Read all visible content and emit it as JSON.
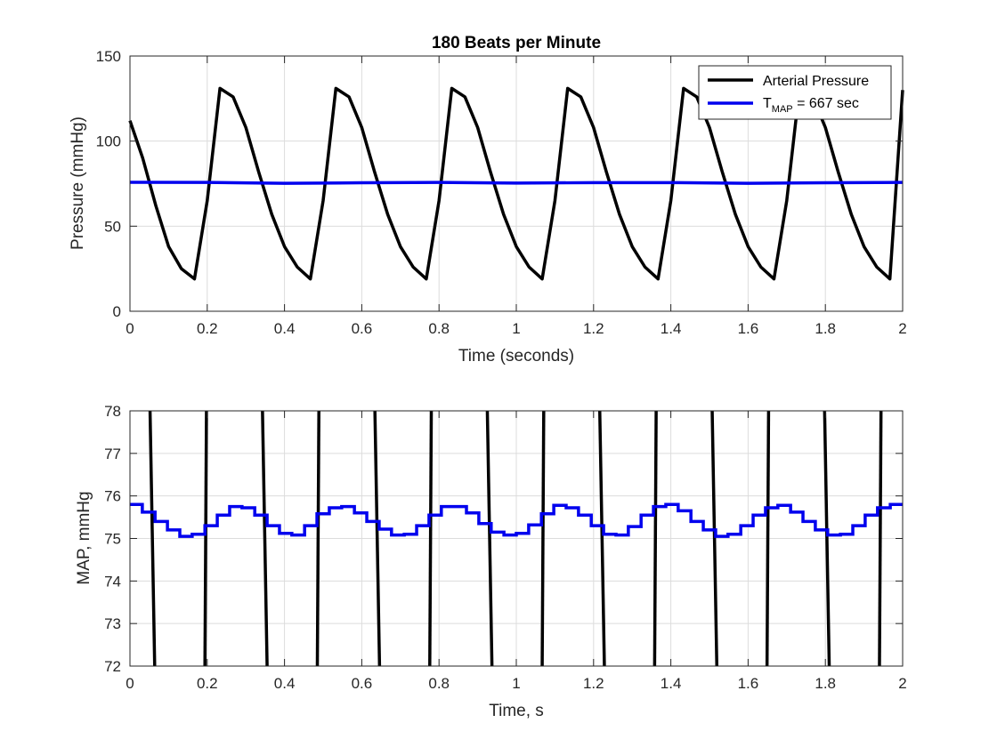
{
  "colors": {
    "pressure": "#000000",
    "map": "#0000ee",
    "grid": "#dcdcdc",
    "axis": "#262626"
  },
  "chart_data": [
    {
      "type": "line",
      "title": "180 Beats per Minute",
      "xlabel": "Time (seconds)",
      "ylabel": "Pressure (mmHg)",
      "xlim": [
        0,
        2
      ],
      "ylim": [
        0,
        150
      ],
      "xticks": [
        "0",
        "0.2",
        "0.4",
        "0.6",
        "0.8",
        "1",
        "1.2",
        "1.4",
        "1.6",
        "1.8",
        "2"
      ],
      "yticks": [
        "0",
        "50",
        "100",
        "150"
      ],
      "grid": true,
      "legend_position": "top-right",
      "legend": {
        "pressure": "Arterial Pressure",
        "map_prefix": "T",
        "map_subscript": "MAP",
        "map_suffix": " = 667 sec"
      },
      "series": [
        {
          "name": "Arterial Pressure",
          "x": [
            0,
            0.033,
            0.067,
            0.1,
            0.133,
            0.167,
            0.2,
            0.233,
            0.267,
            0.3,
            0.333,
            0.367,
            0.4,
            0.433,
            0.467,
            0.5,
            0.533,
            0.567,
            0.6,
            0.633,
            0.667,
            0.7,
            0.733,
            0.767,
            0.8,
            0.833,
            0.867,
            0.9,
            0.933,
            0.967,
            1.0,
            1.033,
            1.067,
            1.1,
            1.133,
            1.167,
            1.2,
            1.233,
            1.267,
            1.3,
            1.333,
            1.367,
            1.4,
            1.433,
            1.467,
            1.5,
            1.533,
            1.567,
            1.6,
            1.633,
            1.667,
            1.7,
            1.733,
            1.767,
            1.8,
            1.833,
            1.867,
            1.9,
            1.933,
            1.967,
            2.0
          ],
          "y": [
            112,
            90,
            62,
            38,
            25,
            19,
            65,
            131,
            126,
            108,
            82,
            57,
            38,
            26,
            19,
            65,
            131,
            126,
            108,
            82,
            57,
            38,
            26,
            19,
            65,
            131,
            126,
            108,
            82,
            57,
            38,
            26,
            19,
            65,
            131,
            126,
            108,
            82,
            57,
            38,
            26,
            19,
            65,
            131,
            126,
            108,
            82,
            57,
            38,
            26,
            19,
            65,
            131,
            126,
            108,
            82,
            57,
            38,
            26,
            19,
            130
          ]
        },
        {
          "name": "T_MAP = 667 sec",
          "x": [
            0,
            0.2,
            0.4,
            0.6,
            0.8,
            1.0,
            1.2,
            1.4,
            1.6,
            1.8,
            2.0
          ],
          "y": [
            75.8,
            75.7,
            75.2,
            75.5,
            75.7,
            75.3,
            75.6,
            75.6,
            75.2,
            75.5,
            75.7
          ]
        }
      ]
    },
    {
      "type": "line",
      "title": "",
      "xlabel": "Time, s",
      "ylabel": "MAP, mmHg",
      "xlim": [
        0,
        2
      ],
      "ylim": [
        72,
        78
      ],
      "xticks": [
        "0",
        "0.2",
        "0.4",
        "0.6",
        "0.8",
        "1",
        "1.2",
        "1.4",
        "1.6",
        "1.8",
        "2"
      ],
      "yticks": [
        "72",
        "73",
        "74",
        "75",
        "76",
        "77",
        "78"
      ],
      "grid": true,
      "crossings": {
        "down": [
          0.058,
          0.349,
          0.64,
          0.931,
          1.222,
          1.513,
          1.804
        ],
        "up": [
          0.196,
          0.487,
          0.778,
          1.069,
          1.36,
          1.651,
          1.942
        ]
      },
      "series": [
        {
          "name": "T_MAP = 667 sec",
          "step_x": [
            0,
            0.032,
            0.065,
            0.097,
            0.129,
            0.161,
            0.194,
            0.226,
            0.258,
            0.29,
            0.323,
            0.355,
            0.387,
            0.419,
            0.452,
            0.484,
            0.516,
            0.548,
            0.581,
            0.613,
            0.645,
            0.677,
            0.71,
            0.742,
            0.774,
            0.806,
            0.839,
            0.871,
            0.903,
            0.935,
            0.968,
            1.0,
            1.032,
            1.065,
            1.097,
            1.129,
            1.161,
            1.194,
            1.226,
            1.258,
            1.29,
            1.323,
            1.355,
            1.387,
            1.419,
            1.452,
            1.484,
            1.516,
            1.548,
            1.581,
            1.613,
            1.645,
            1.677,
            1.71,
            1.742,
            1.774,
            1.806,
            1.839,
            1.871,
            1.903,
            1.935,
            1.968
          ],
          "step_y": [
            75.8,
            75.62,
            75.4,
            75.2,
            75.05,
            75.1,
            75.3,
            75.55,
            75.75,
            75.72,
            75.55,
            75.3,
            75.12,
            75.08,
            75.3,
            75.58,
            75.72,
            75.75,
            75.6,
            75.4,
            75.22,
            75.08,
            75.1,
            75.3,
            75.55,
            75.75,
            75.75,
            75.6,
            75.35,
            75.15,
            75.08,
            75.12,
            75.32,
            75.58,
            75.78,
            75.72,
            75.55,
            75.3,
            75.1,
            75.08,
            75.28,
            75.55,
            75.75,
            75.8,
            75.65,
            75.4,
            75.2,
            75.05,
            75.1,
            75.3,
            75.55,
            75.72,
            75.78,
            75.62,
            75.4,
            75.2,
            75.08,
            75.1,
            75.3,
            75.55,
            75.72,
            75.8
          ],
          "x_end": 2.0
        }
      ]
    }
  ]
}
